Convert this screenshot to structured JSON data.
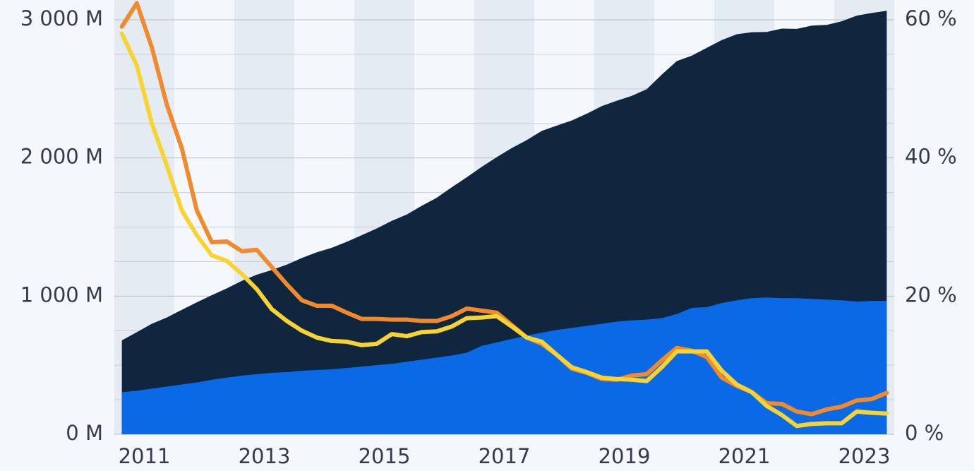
{
  "chart_data": {
    "type": "area-line",
    "x": [
      2011.125,
      2011.375,
      2011.625,
      2011.875,
      2012.125,
      2012.375,
      2012.625,
      2012.875,
      2013.125,
      2013.375,
      2013.625,
      2013.875,
      2014.125,
      2014.375,
      2014.625,
      2014.875,
      2015.125,
      2015.375,
      2015.625,
      2015.875,
      2016.125,
      2016.375,
      2016.625,
      2016.875,
      2017.125,
      2017.375,
      2017.625,
      2017.875,
      2018.125,
      2018.375,
      2018.625,
      2018.875,
      2019.125,
      2019.375,
      2019.625,
      2019.875,
      2020.125,
      2020.375,
      2020.625,
      2020.875,
      2021.125,
      2021.375,
      2021.625,
      2021.875,
      2022.125,
      2022.375,
      2022.625,
      2022.875,
      2023.125,
      2023.375,
      2023.625,
      2023.875
    ],
    "xlim": [
      2011,
      2024
    ],
    "xticks": [
      {
        "value": 2011.5,
        "label": "2011"
      },
      {
        "value": 2013.5,
        "label": "2013"
      },
      {
        "value": 2015.5,
        "label": "2015"
      },
      {
        "value": 2017.5,
        "label": "2017"
      },
      {
        "value": 2019.5,
        "label": "2019"
      },
      {
        "value": 2021.5,
        "label": "2021"
      },
      {
        "value": 2023.5,
        "label": "2023"
      }
    ],
    "ylim": [
      0,
      3000
    ],
    "yticks": [
      {
        "value": 0,
        "label": "0 M"
      },
      {
        "value": 1000,
        "label": "1 000 M"
      },
      {
        "value": 2000,
        "label": "2 000 M"
      },
      {
        "value": 3000,
        "label": "3 000 M"
      }
    ],
    "y2lim": [
      0,
      60
    ],
    "y2ticks": [
      {
        "value": 0,
        "label": "0 %"
      },
      {
        "value": 20,
        "label": "20 %"
      },
      {
        "value": 40,
        "label": "40 %"
      },
      {
        "value": 60,
        "label": "60 %"
      }
    ],
    "grid": true,
    "series": [
      {
        "kind": "area",
        "color": "#10263f",
        "values": [
          680,
          739,
          800,
          845,
          901,
          955,
          1007,
          1056,
          1110,
          1155,
          1189,
          1228,
          1276,
          1317,
          1350,
          1393,
          1441,
          1490,
          1545,
          1591,
          1654,
          1712,
          1788,
          1860,
          1936,
          2006,
          2072,
          2129,
          2196,
          2234,
          2271,
          2320,
          2375,
          2414,
          2449,
          2498,
          2603,
          2701,
          2740,
          2797,
          2853,
          2895,
          2910,
          2912,
          2936,
          2934,
          2958,
          2963,
          2989,
          3030,
          3049,
          3065
        ]
      },
      {
        "kind": "area",
        "color": "#0a69e4",
        "values": [
          305,
          315,
          330,
          345,
          360,
          375,
          395,
          410,
          425,
          435,
          445,
          450,
          460,
          465,
          470,
          480,
          490,
          500,
          510,
          525,
          540,
          555,
          570,
          590,
          640,
          665,
          690,
          715,
          735,
          755,
          770,
          785,
          800,
          815,
          825,
          830,
          840,
          870,
          915,
          920,
          950,
          970,
          985,
          990,
          985,
          985,
          980,
          975,
          970,
          960,
          965,
          965
        ]
      },
      {
        "kind": "line",
        "axis": "y2",
        "color": "#f08a2c",
        "values": [
          59,
          62.4,
          56,
          47.7,
          41.4,
          32.4,
          27.8,
          27.9,
          26.5,
          26.7,
          24.2,
          21.7,
          19.4,
          18.6,
          18.6,
          17.6,
          16.7,
          16.7,
          16.6,
          16.6,
          16.4,
          16.4,
          17.1,
          18.2,
          17.9,
          17.6,
          15.8,
          14,
          13.1,
          11.5,
          9.5,
          8.9,
          8,
          7.9,
          8.5,
          8.7,
          10.7,
          12.5,
          12.1,
          11.2,
          8.2,
          7,
          6.1,
          4.5,
          4.4,
          3.3,
          2.9,
          3.6,
          4,
          4.9,
          5.1,
          6
        ]
      },
      {
        "kind": "line",
        "axis": "y2",
        "color": "#f7d432",
        "values": [
          58,
          53.4,
          45,
          38.9,
          32.4,
          28.8,
          25.9,
          25.1,
          23.2,
          21,
          18.1,
          16.4,
          15,
          14,
          13.5,
          13.4,
          12.9,
          13.1,
          14.5,
          14.2,
          14.8,
          14.9,
          15.6,
          16.8,
          16.9,
          17.1,
          15.6,
          14,
          13.4,
          11.5,
          9.7,
          9,
          8.2,
          8,
          7.9,
          7.7,
          9.7,
          12,
          12,
          12,
          9.2,
          7.2,
          6.1,
          4.1,
          2.8,
          1.2,
          1.5,
          1.6,
          1.6,
          3.3,
          3.1,
          3
        ]
      }
    ]
  }
}
